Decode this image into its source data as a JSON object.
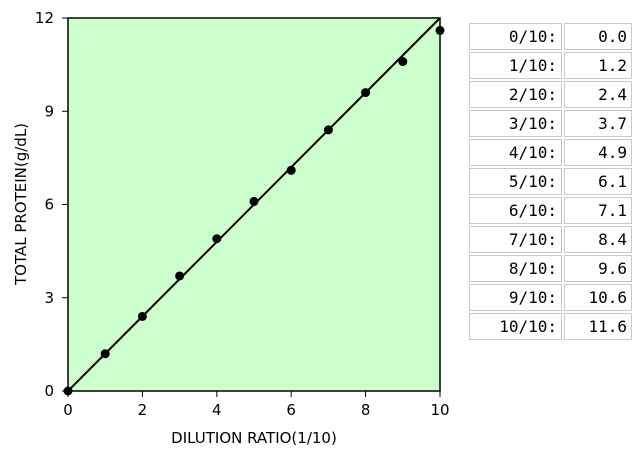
{
  "chart_data": {
    "type": "line",
    "xlabel": "DILUTION RATIO(1/10)",
    "ylabel": "TOTAL  PROTEIN(g/dL)",
    "xlim": [
      0,
      10
    ],
    "ylim": [
      0,
      12
    ],
    "xticks": [
      "0",
      "2",
      "4",
      "6",
      "8",
      "10"
    ],
    "yticks": [
      "0",
      "3",
      "6",
      "9",
      "12"
    ],
    "plot_background": "#ccffcc",
    "series": [
      {
        "x": [
          0,
          1,
          2,
          3,
          4,
          5,
          6,
          7,
          8,
          9,
          10
        ],
        "y": [
          0.0,
          1.2,
          2.4,
          3.7,
          4.9,
          6.1,
          7.1,
          8.4,
          9.6,
          10.6,
          11.6
        ],
        "marker": "circle",
        "color": "#000000"
      }
    ],
    "reference_line": {
      "from": [
        0,
        0
      ],
      "to": [
        10,
        12
      ],
      "color": "#000000"
    }
  },
  "table": {
    "rows": [
      {
        "ratio": "0/10:",
        "value": "0.0"
      },
      {
        "ratio": "1/10:",
        "value": "1.2"
      },
      {
        "ratio": "2/10:",
        "value": "2.4"
      },
      {
        "ratio": "3/10:",
        "value": "3.7"
      },
      {
        "ratio": "4/10:",
        "value": "4.9"
      },
      {
        "ratio": "5/10:",
        "value": "6.1"
      },
      {
        "ratio": "6/10:",
        "value": "7.1"
      },
      {
        "ratio": "7/10:",
        "value": "8.4"
      },
      {
        "ratio": "8/10:",
        "value": "9.6"
      },
      {
        "ratio": "9/10:",
        "value": "10.6"
      },
      {
        "ratio": "10/10:",
        "value": "11.6"
      }
    ]
  }
}
